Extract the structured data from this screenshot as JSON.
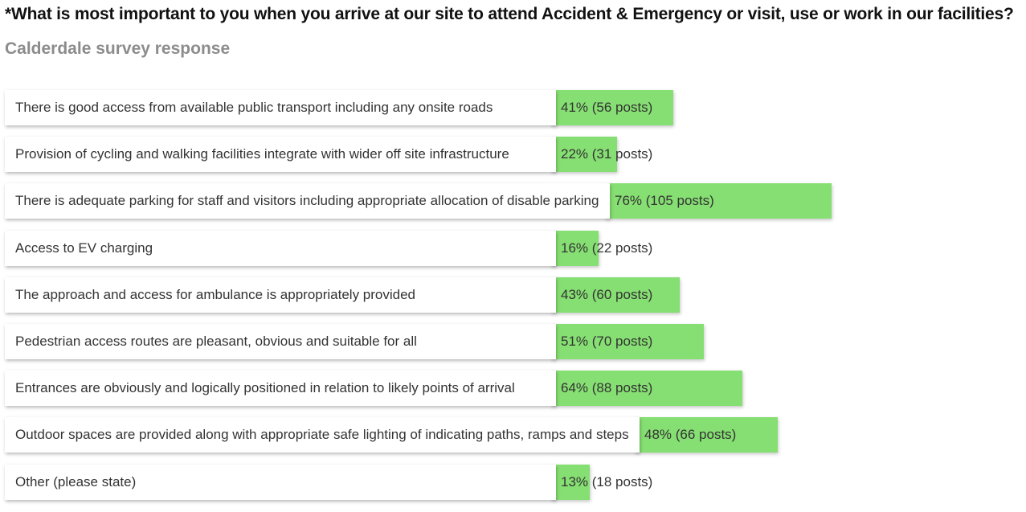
{
  "title": "*What is most important to you when you arrive at our site to attend Accident & Emergency or visit, use or work in our facilities?",
  "subtitle": "Calderdale survey response",
  "colors": {
    "bar": "#86df72",
    "label_bg": "#ffffff",
    "text": "#333333"
  },
  "chart_data": {
    "type": "bar",
    "orientation": "horizontal",
    "categories": [
      "There is good access from available public transport including any onsite roads",
      "Provision of cycling and walking facilities integrate with wider off site infrastructure",
      "There is adequate parking for staff and visitors including appropriate allocation of disable parking",
      "Access to EV charging",
      "The approach and access for ambulance is appropriately provided",
      "Pedestrian access routes are pleasant, obvious and suitable for all",
      "Entrances are obviously and logically positioned in relation to likely points of arrival",
      "Outdoor spaces are provided along with appropriate safe lighting of indicating paths, ramps and steps",
      "Other (please state)"
    ],
    "percent": [
      41,
      22,
      76,
      16,
      43,
      51,
      64,
      48,
      13
    ],
    "posts": [
      56,
      31,
      105,
      22,
      60,
      70,
      88,
      66,
      18
    ],
    "value_labels": [
      "41% (56 posts)",
      "22% (31 posts)",
      "76% (105 posts)",
      "16% (22 posts)",
      "43% (60 posts)",
      "51% (70 posts)",
      "64% (88 posts)",
      "48% (66 posts)",
      "13% (18 posts)"
    ],
    "grid": false,
    "legend": "none"
  }
}
